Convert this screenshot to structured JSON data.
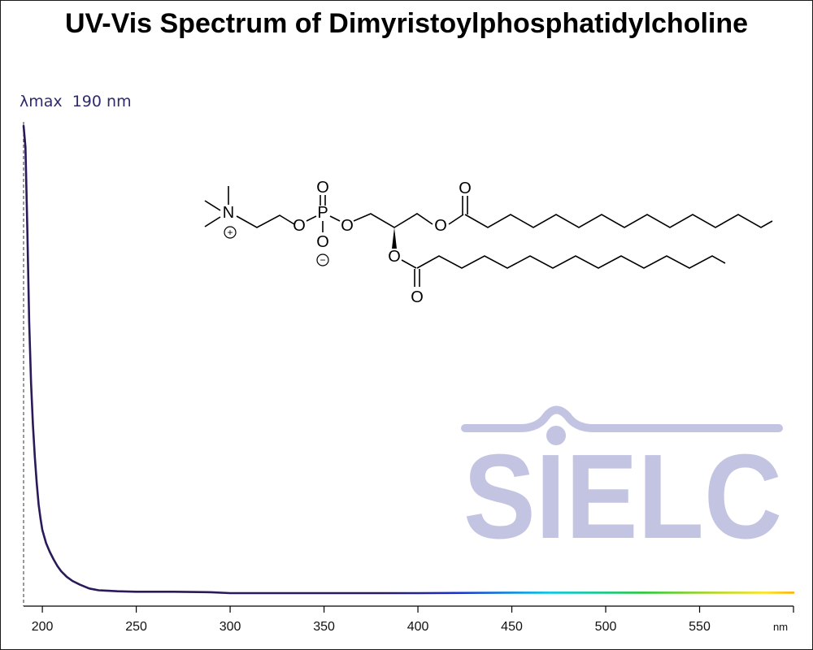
{
  "chart_data": {
    "type": "line",
    "title": "UV-Vis Spectrum of Dimyristoylphosphatidylcholine",
    "annotation": "λmax  190 nm",
    "lambda_max": 190,
    "xunit": "nm",
    "xlim": [
      190,
      600
    ],
    "xticks": [
      200,
      250,
      300,
      350,
      400,
      450,
      500,
      550
    ],
    "grid": false,
    "legend": "none",
    "series": [
      {
        "x": [
          190,
          191,
          192,
          193,
          194,
          195,
          196,
          197,
          198,
          199,
          200,
          202,
          204,
          206,
          208,
          210,
          213,
          216,
          220,
          225,
          230,
          235,
          240,
          250,
          270,
          290,
          300,
          350,
          400,
          450,
          500,
          550,
          600
        ],
        "y": [
          1.0,
          0.955,
          0.78,
          0.58,
          0.45,
          0.36,
          0.29,
          0.235,
          0.19,
          0.16,
          0.135,
          0.107,
          0.088,
          0.072,
          0.058,
          0.047,
          0.035,
          0.026,
          0.018,
          0.01,
          0.006,
          0.005,
          0.004,
          0.003,
          0.003,
          0.002,
          0.0,
          0.0,
          0.0,
          0.001,
          0.001,
          0.001,
          0.001
        ]
      }
    ],
    "color_stops": [
      {
        "x": 380,
        "color": "#2a1a5a"
      },
      {
        "x": 420,
        "color": "#1d2fd0"
      },
      {
        "x": 470,
        "color": "#00c8e8"
      },
      {
        "x": 520,
        "color": "#25c83a"
      },
      {
        "x": 560,
        "color": "#b9d820"
      },
      {
        "x": 585,
        "color": "#ffe31a"
      },
      {
        "x": 600,
        "color": "#ffb000"
      }
    ]
  },
  "watermark": {
    "text": "SIELC",
    "color": "#c3c4e2"
  },
  "molecule": {
    "atoms": [
      "N",
      "O",
      "P",
      "O",
      "O",
      "O",
      "O",
      "O",
      "O",
      "O"
    ],
    "charges": [
      "⊕",
      "⊖"
    ]
  }
}
